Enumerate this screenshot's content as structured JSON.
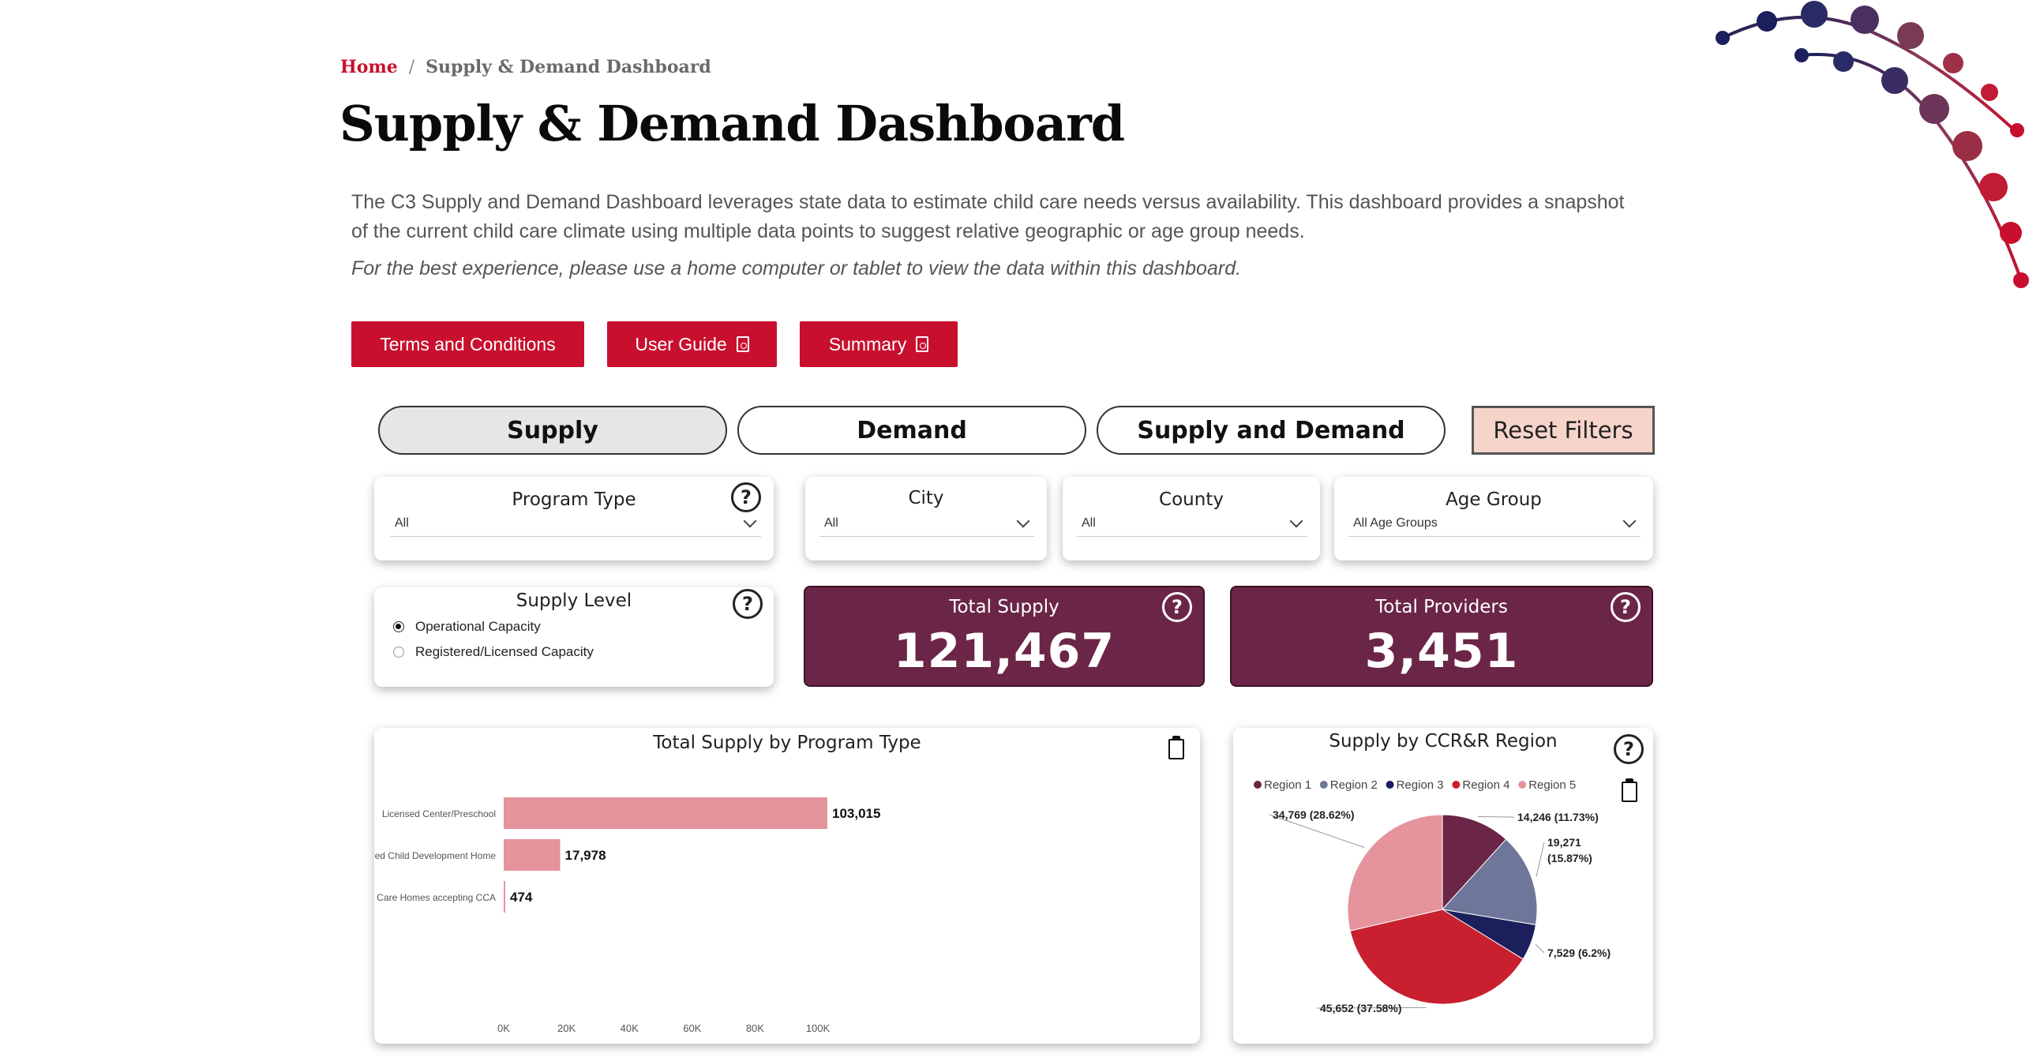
{
  "breadcrumb": {
    "home": "Home",
    "separator": "/",
    "current": "Supply & Demand Dashboard"
  },
  "page_title": "Supply & Demand Dashboard",
  "intro": {
    "description": "The C3 Supply and Demand Dashboard leverages state data to estimate child care needs versus availability. This dashboard provides a snapshot of the current child care climate using multiple data points to suggest relative geographic or age group needs.",
    "note": "For the best experience, please use a home computer or tablet to view the data within this dashboard."
  },
  "buttons": {
    "terms": "Terms and Conditions",
    "user_guide": "User Guide",
    "summary": "Summary"
  },
  "tabs": [
    {
      "label": "Supply",
      "active": true
    },
    {
      "label": "Demand",
      "active": false
    },
    {
      "label": "Supply and Demand",
      "active": false
    }
  ],
  "reset_label": "Reset Filters",
  "help_glyph": "?",
  "filters": {
    "program_type": {
      "label": "Program Type",
      "value": "All"
    },
    "city": {
      "label": "City",
      "value": "All"
    },
    "county": {
      "label": "County",
      "value": "All"
    },
    "age_group": {
      "label": "Age Group",
      "value": "All Age Groups"
    }
  },
  "supply_level": {
    "label": "Supply Level",
    "options": [
      {
        "label": "Operational Capacity",
        "selected": true
      },
      {
        "label": "Registered/Licensed Capacity",
        "selected": false
      }
    ]
  },
  "kpis": {
    "total_supply": {
      "label": "Total Supply",
      "value": "121,467"
    },
    "total_providers": {
      "label": "Total Providers",
      "value": "3,451"
    }
  },
  "colors": {
    "brand_red": "#c8102e",
    "kpi_bg": "#6b2647",
    "bar": "#e5939d",
    "region_1": "#6b2647",
    "region_2": "#6e7699",
    "region_3": "#1b1f5c",
    "region_4": "#c8202f",
    "region_5": "#e5939d"
  },
  "icons": [
    "question-icon",
    "clipboard-icon",
    "pdf-icon",
    "chevron-down-icon",
    "radio-icon"
  ],
  "chart_data": [
    {
      "type": "bar",
      "orientation": "horizontal",
      "title": "Total Supply by Program Type",
      "categories": [
        "Licensed Center/Preschool",
        "Registered Child Development Home",
        "Child Care Homes accepting CCA"
      ],
      "values": [
        103015,
        17978,
        474
      ],
      "value_labels": [
        "103,015",
        "17,978",
        "474"
      ],
      "xlim": [
        0,
        110000
      ],
      "xticks": [
        "0K",
        "20K",
        "40K",
        "60K",
        "80K",
        "100K"
      ],
      "grid": false
    },
    {
      "type": "pie",
      "title": "Supply by CCR&R Region",
      "legend_position": "top",
      "series": [
        {
          "name": "Region 1",
          "value": 14246,
          "label": "14,246 (11.73%)"
        },
        {
          "name": "Region 2",
          "value": 19271,
          "label": "19,271 (15.87%)"
        },
        {
          "name": "Region 3",
          "value": 7529,
          "label": "7,529 (6.2%)"
        },
        {
          "name": "Region 4",
          "value": 45652,
          "label": "45,652 (37.58%)"
        },
        {
          "name": "Region 5",
          "value": 34769,
          "label": "34,769 (28.62%)"
        }
      ]
    }
  ]
}
